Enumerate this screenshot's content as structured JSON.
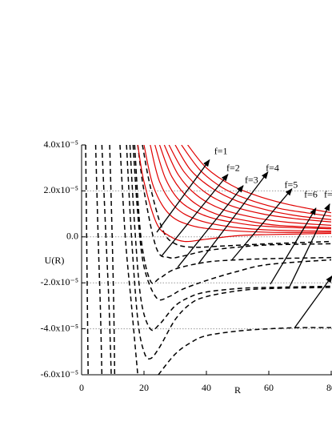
{
  "chart_data": {
    "type": "line",
    "x_label": "R",
    "y_label": "U(R)",
    "xlim": [
      0,
      80
    ],
    "ylim": [
      -6e-05,
      4e-05
    ],
    "xticks": [
      0,
      20,
      40,
      60,
      80
    ],
    "yticks": [
      {
        "value": -6e-05,
        "label": "-6.0x10⁻⁵"
      },
      {
        "value": -4e-05,
        "label": "-4.0x10⁻⁵"
      },
      {
        "value": -2e-05,
        "label": "-2.0x10⁻⁵"
      },
      {
        "value": 0,
        "label": "0.0"
      },
      {
        "value": 2e-05,
        "label": "2.0x10⁻⁵"
      },
      {
        "value": 4e-05,
        "label": "4.0x10⁻⁵"
      }
    ],
    "grid": true,
    "series": [
      {
        "color": "#000000",
        "style": "dashed",
        "x": [
          1.3,
          1.7,
          2.1
        ],
        "values": [
          4e-05,
          -1e-05,
          -6e-05
        ]
      },
      {
        "color": "#000000",
        "style": "dashed",
        "x": [
          4.5,
          5.3,
          6.0,
          6.5
        ],
        "values": [
          4e-05,
          0,
          -3e-05,
          -6e-05
        ]
      },
      {
        "color": "#000000",
        "style": "dashed",
        "x": [
          6.5,
          7.8,
          8.8,
          9.5
        ],
        "values": [
          4e-05,
          0,
          -3e-05,
          -6e-05
        ]
      },
      {
        "color": "#000000",
        "style": "dashed",
        "x": [
          9,
          9.8,
          10.3,
          10.6
        ],
        "values": [
          4e-05,
          0,
          -3e-05,
          -6e-05
        ]
      },
      {
        "color": "#000000",
        "style": "dashed",
        "x": [
          12.3,
          14,
          16,
          18
        ],
        "values": [
          4e-05,
          0,
          -3e-05,
          -6e-05
        ]
      },
      {
        "color": "#000000",
        "style": "dashed",
        "x": [
          24.6,
          30,
          35,
          40,
          50,
          60,
          70,
          80
        ],
        "values": [
          -6e-05,
          -5.1e-05,
          -4.6e-05,
          -4.3e-05,
          -4.1e-05,
          -4e-05,
          -3.95e-05,
          -3.95e-05
        ]
      },
      {
        "color": "#000000",
        "style": "dashed",
        "x": [
          14.4,
          16,
          18,
          20,
          22,
          25,
          30,
          35,
          40,
          50,
          60,
          80
        ],
        "values": [
          4e-05,
          0,
          -3.6e-05,
          -5e-05,
          -5.3e-05,
          -4.8e-05,
          -3.6e-05,
          -2.9e-05,
          -2.6e-05,
          -2.35e-05,
          -2.25e-05,
          -2.2e-05
        ]
      },
      {
        "color": "#000000",
        "style": "dashed",
        "x": [
          15.5,
          17,
          19,
          22,
          25,
          30,
          35,
          40,
          50,
          60,
          80
        ],
        "values": [
          4e-05,
          5e-06,
          -2.7e-05,
          -4e-05,
          -3.8e-05,
          -3e-05,
          -2.6e-05,
          -2.4e-05,
          -2.25e-05,
          -2.2e-05,
          -2.15e-05
        ]
      },
      {
        "color": "#000000",
        "style": "dashed",
        "x": [
          16.5,
          18,
          20,
          24,
          28,
          32,
          40,
          50,
          60,
          80
        ],
        "values": [
          4e-05,
          1e-05,
          -1.3e-05,
          -2.65e-05,
          -2.6e-05,
          -2.3e-05,
          -1.9e-05,
          -1.5e-05,
          -1.2e-05,
          -1e-05
        ]
      },
      {
        "color": "#000000",
        "style": "dashed",
        "x": [
          17,
          19,
          22,
          25,
          30,
          40,
          50,
          60,
          80
        ],
        "values": [
          4e-05,
          0,
          -1.9e-05,
          -1.8e-05,
          -1.4e-05,
          -1.1e-05,
          -1e-05,
          -9.5e-06,
          -9e-06
        ]
      },
      {
        "color": "#000000",
        "style": "dashed",
        "x": [
          18,
          20,
          24,
          28,
          32,
          40,
          50,
          60,
          80
        ],
        "values": [
          4e-05,
          2e-05,
          -5e-06,
          -9e-06,
          -8.5e-06,
          -6e-06,
          -4.5e-06,
          -3.5e-06,
          -3e-06
        ]
      },
      {
        "color": "#000000",
        "style": "dashed",
        "x": [
          19.5,
          22,
          26,
          30,
          36,
          45,
          60,
          80
        ],
        "values": [
          4e-05,
          2.2e-05,
          3e-06,
          -3e-06,
          -4.5e-06,
          -4e-06,
          -3e-06,
          -2e-06
        ]
      },
      {
        "color": "#e00000",
        "style": "solid",
        "x": [
          18,
          20,
          24,
          28,
          33,
          40,
          50,
          60,
          80
        ],
        "values": [
          4e-05,
          2.4e-05,
          6e-06,
          5e-07,
          -2e-06,
          -1e-06,
          5e-07,
          1e-06,
          1.5e-06
        ]
      },
      {
        "color": "#e00000",
        "style": "solid",
        "x": [
          20,
          23,
          28,
          35,
          45,
          60,
          80
        ],
        "values": [
          4e-05,
          2.2e-05,
          1e-05,
          5e-06,
          3e-06,
          2e-06,
          2e-06
        ]
      },
      {
        "color": "#e00000",
        "style": "solid",
        "x": [
          22,
          25,
          30,
          37,
          47,
          60,
          80
        ],
        "values": [
          4e-05,
          2.4e-05,
          1.3e-05,
          7.5e-06,
          4.5e-06,
          3e-06,
          2.5e-06
        ]
      },
      {
        "color": "#e00000",
        "style": "solid",
        "x": [
          23.5,
          27,
          32,
          40,
          50,
          60,
          80
        ],
        "values": [
          4e-05,
          2.5e-05,
          1.5e-05,
          9e-06,
          6e-06,
          4.5e-06,
          3.5e-06
        ]
      },
      {
        "color": "#e00000",
        "style": "solid",
        "x": [
          25,
          29,
          35,
          43,
          53,
          63,
          80
        ],
        "values": [
          4e-05,
          2.6e-05,
          1.6e-05,
          1e-05,
          7e-06,
          5e-06,
          4e-06
        ]
      },
      {
        "color": "#e00000",
        "style": "solid",
        "x": [
          26.5,
          31,
          37,
          45,
          55,
          65,
          80
        ],
        "values": [
          4e-05,
          2.7e-05,
          1.8e-05,
          1.2e-05,
          8.5e-06,
          6.5e-06,
          5e-06
        ]
      },
      {
        "color": "#e00000",
        "style": "solid",
        "x": [
          28,
          33,
          40,
          48,
          58,
          68,
          80
        ],
        "values": [
          4e-05,
          2.8e-05,
          1.9e-05,
          1.35e-05,
          1e-05,
          8e-06,
          6.5e-06
        ]
      },
      {
        "color": "#e00000",
        "style": "solid",
        "x": [
          30,
          35,
          42,
          50,
          60,
          70,
          80
        ],
        "values": [
          4e-05,
          2.9e-05,
          2.1e-05,
          1.55e-05,
          1.15e-05,
          9e-06,
          7.5e-06
        ]
      },
      {
        "color": "#e00000",
        "style": "solid",
        "x": [
          32,
          38,
          45,
          53,
          63,
          72,
          80
        ],
        "values": [
          4e-05,
          2.9e-05,
          2.15e-05,
          1.65e-05,
          1.25e-05,
          1.05e-05,
          9e-06
        ]
      },
      {
        "color": "#e00000",
        "style": "solid",
        "x": [
          34,
          40,
          48,
          56,
          65,
          74,
          80
        ],
        "values": [
          4e-05,
          3e-05,
          2.25e-05,
          1.8e-05,
          1.45e-05,
          1.2e-05,
          1.05e-05
        ]
      }
    ],
    "annotations": [
      {
        "text": "f=1",
        "x": 42.5,
        "y": 3.7e-05,
        "arrow_from": [
          24.1,
          2e-06
        ],
        "arrow_to": [
          41,
          3.35e-05
        ]
      },
      {
        "text": "f=2",
        "x": 46.4,
        "y": 2.96e-05,
        "arrow_from": [
          25.6,
          -8.4e-06
        ],
        "arrow_to": [
          46.9,
          2.72e-05
        ]
      },
      {
        "text": "f=3",
        "x": 52.3,
        "y": 2.44e-05,
        "arrow_from": [
          30.8,
          -1.32e-05
        ],
        "arrow_to": [
          51.8,
          2.23e-05
        ]
      },
      {
        "text": "f=4",
        "x": 59,
        "y": 2.96e-05,
        "arrow_from": [
          37.4,
          -1.18e-05
        ],
        "arrow_to": [
          59.7,
          2.82e-05
        ]
      },
      {
        "text": "f=5",
        "x": 65,
        "y": 2.23e-05,
        "arrow_from": [
          48.2,
          -1e-05
        ],
        "arrow_to": [
          67.4,
          2.09e-05
        ]
      },
      {
        "text": "f=6",
        "x": 71.3,
        "y": 1.81e-05,
        "arrow_from": [
          60.5,
          -2.06e-05
        ],
        "arrow_to": [
          75.1,
          1.25e-05
        ]
      },
      {
        "text": "f=",
        "x": 77.7,
        "y": 1.81e-05,
        "arrow_from": [
          66.7,
          -2.16e-05
        ],
        "arrow_to": [
          79.5,
          1.43e-05
        ]
      },
      {
        "arrow_from": [
          68.2,
          -3.97e-05
        ],
        "arrow_to": [
          80.3,
          -1.7e-05
        ]
      }
    ]
  }
}
